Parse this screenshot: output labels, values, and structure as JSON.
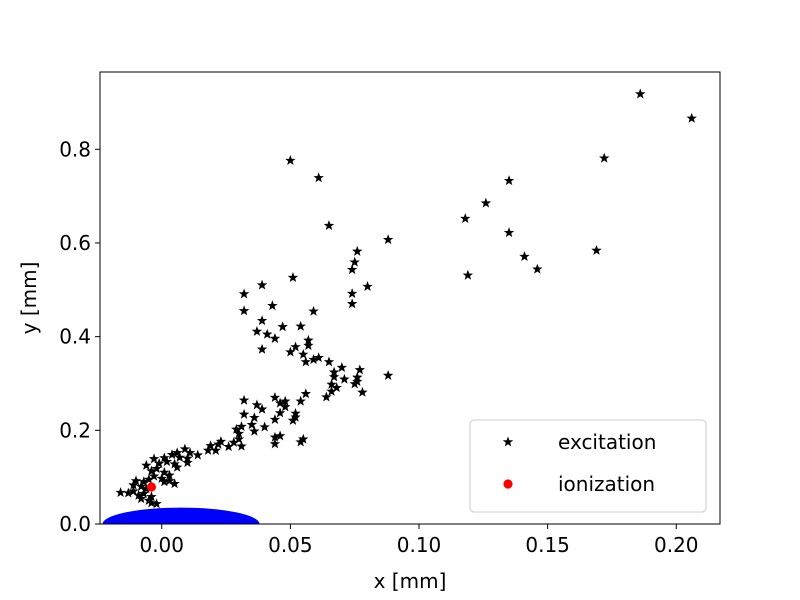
{
  "chart_data": {
    "type": "scatter",
    "xlabel": "x [mm]",
    "ylabel": "y [mm]",
    "xlim": [
      -0.024,
      0.217
    ],
    "ylim": [
      0.0,
      0.965
    ],
    "xticks": [
      {
        "value": 0.0,
        "label": "0.00"
      },
      {
        "value": 0.05,
        "label": "0.05"
      },
      {
        "value": 0.1,
        "label": "0.10"
      },
      {
        "value": 0.15,
        "label": "0.15"
      },
      {
        "value": 0.2,
        "label": "0.20"
      }
    ],
    "yticks": [
      {
        "value": 0.0,
        "label": "0.0"
      },
      {
        "value": 0.2,
        "label": "0.2"
      },
      {
        "value": 0.4,
        "label": "0.4"
      },
      {
        "value": 0.6,
        "label": "0.6"
      },
      {
        "value": 0.8,
        "label": "0.8"
      }
    ],
    "grid": false,
    "legend_position": "bottom-right",
    "region": {
      "color": "#0000ff",
      "cx": 0.0075,
      "cy": 0.0,
      "rx": 0.0305,
      "ry": 0.035
    },
    "series": [
      {
        "name": "excitation",
        "marker": "star",
        "color": "#000000",
        "points": [
          [
            0.186,
            0.918
          ],
          [
            0.206,
            0.866
          ],
          [
            0.172,
            0.781
          ],
          [
            0.169,
            0.584
          ],
          [
            0.146,
            0.544
          ],
          [
            0.141,
            0.571
          ],
          [
            0.135,
            0.733
          ],
          [
            0.135,
            0.622
          ],
          [
            0.126,
            0.685
          ],
          [
            0.119,
            0.531
          ],
          [
            0.118,
            0.652
          ],
          [
            0.05,
            0.776
          ],
          [
            0.061,
            0.739
          ],
          [
            0.065,
            0.637
          ],
          [
            0.088,
            0.607
          ],
          [
            0.076,
            0.582
          ],
          [
            0.075,
            0.559
          ],
          [
            0.074,
            0.543
          ],
          [
            0.08,
            0.507
          ],
          [
            0.074,
            0.492
          ],
          [
            0.074,
            0.47
          ],
          [
            0.051,
            0.526
          ],
          [
            0.039,
            0.51
          ],
          [
            0.032,
            0.491
          ],
          [
            0.043,
            0.466
          ],
          [
            0.032,
            0.455
          ],
          [
            0.059,
            0.454
          ],
          [
            0.039,
            0.434
          ],
          [
            0.047,
            0.421
          ],
          [
            0.054,
            0.422
          ],
          [
            0.037,
            0.411
          ],
          [
            0.041,
            0.405
          ],
          [
            0.044,
            0.396
          ],
          [
            0.057,
            0.392
          ],
          [
            0.057,
            0.381
          ],
          [
            0.052,
            0.378
          ],
          [
            0.039,
            0.373
          ],
          [
            0.05,
            0.367
          ],
          [
            0.055,
            0.362
          ],
          [
            0.059,
            0.351
          ],
          [
            0.061,
            0.355
          ],
          [
            0.056,
            0.346
          ],
          [
            0.065,
            0.346
          ],
          [
            0.07,
            0.334
          ],
          [
            0.077,
            0.329
          ],
          [
            0.067,
            0.324
          ],
          [
            0.067,
            0.314
          ],
          [
            0.088,
            0.317
          ],
          [
            0.076,
            0.313
          ],
          [
            0.071,
            0.309
          ],
          [
            0.076,
            0.304
          ],
          [
            0.075,
            0.299
          ],
          [
            0.066,
            0.298
          ],
          [
            0.068,
            0.291
          ],
          [
            0.066,
            0.283
          ],
          [
            0.078,
            0.281
          ],
          [
            0.064,
            0.271
          ],
          [
            0.056,
            0.278
          ],
          [
            0.044,
            0.27
          ],
          [
            0.032,
            0.264
          ],
          [
            0.048,
            0.262
          ],
          [
            0.054,
            0.262
          ],
          [
            0.046,
            0.258
          ],
          [
            0.037,
            0.254
          ],
          [
            0.048,
            0.25
          ],
          [
            0.039,
            0.245
          ],
          [
            0.046,
            0.237
          ],
          [
            0.052,
            0.236
          ],
          [
            0.052,
            0.228
          ],
          [
            0.032,
            0.234
          ],
          [
            0.036,
            0.227
          ],
          [
            0.044,
            0.223
          ],
          [
            0.051,
            0.221
          ],
          [
            0.035,
            0.212
          ],
          [
            0.04,
            0.207
          ],
          [
            0.031,
            0.208
          ],
          [
            0.029,
            0.202
          ],
          [
            0.036,
            0.198
          ],
          [
            0.03,
            0.193
          ],
          [
            0.046,
            0.188
          ],
          [
            0.044,
            0.185
          ],
          [
            0.055,
            0.181
          ],
          [
            0.054,
            0.175
          ],
          [
            0.044,
            0.171
          ],
          [
            0.03,
            0.181
          ],
          [
            0.028,
            0.174
          ],
          [
            0.023,
            0.176
          ],
          [
            0.022,
            0.17
          ],
          [
            0.031,
            0.166
          ],
          [
            0.026,
            0.165
          ],
          [
            0.019,
            0.167
          ],
          [
            0.018,
            0.157
          ],
          [
            0.021,
            0.157
          ],
          [
            0.009,
            0.16
          ],
          [
            0.011,
            0.152
          ],
          [
            0.014,
            0.147
          ],
          [
            0.006,
            0.152
          ],
          [
            0.004,
            0.148
          ],
          [
            0.007,
            0.142
          ],
          [
            0.01,
            0.14
          ],
          [
            0.001,
            0.141
          ],
          [
            -0.003,
            0.139
          ],
          [
            0.002,
            0.133
          ],
          [
            0.005,
            0.128
          ],
          [
            0.01,
            0.131
          ],
          [
            0.006,
            0.121
          ],
          [
            -0.001,
            0.129
          ],
          [
            -0.006,
            0.125
          ],
          [
            -0.002,
            0.118
          ],
          [
            -0.004,
            0.113
          ],
          [
            0.001,
            0.11
          ],
          [
            0.003,
            0.104
          ],
          [
            -0.003,
            0.102
          ],
          [
            0.0,
            0.097
          ],
          [
            -0.005,
            0.095
          ],
          [
            -0.007,
            0.09
          ],
          [
            -0.01,
            0.092
          ],
          [
            -0.011,
            0.083
          ],
          [
            -0.008,
            0.08
          ],
          [
            -0.006,
            0.075
          ],
          [
            -0.011,
            0.07
          ],
          [
            -0.007,
            0.065
          ],
          [
            -0.013,
            0.066
          ],
          [
            -0.016,
            0.067
          ],
          [
            -0.009,
            0.061
          ],
          [
            -0.004,
            0.058
          ],
          [
            -0.008,
            0.054
          ],
          [
            -0.005,
            0.05
          ],
          [
            -0.004,
            0.045
          ],
          [
            -0.002,
            0.043
          ],
          [
            0.005,
            0.086
          ],
          [
            0.003,
            0.092
          ],
          [
            0.001,
            0.09
          ]
        ]
      },
      {
        "name": "ionization",
        "marker": "circle",
        "color": "#ff0000",
        "points": [
          [
            -0.004,
            0.079
          ]
        ]
      }
    ]
  }
}
